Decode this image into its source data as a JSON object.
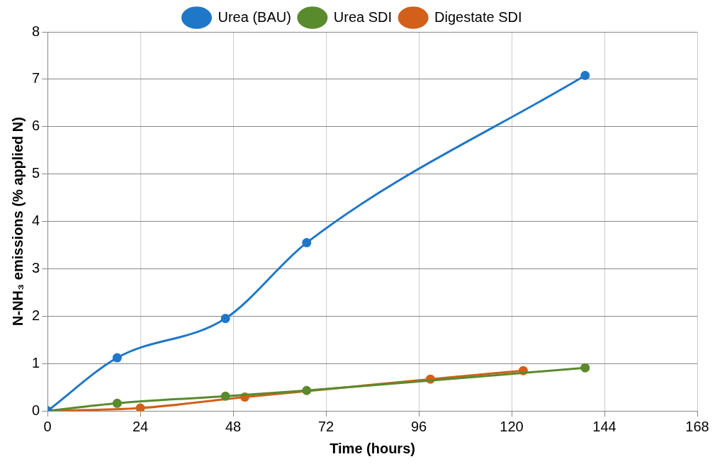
{
  "chart_data": {
    "type": "line",
    "xlabel": "Time (hours)",
    "ylabel": "N-NH₃ emissions (% applied N)",
    "xlim": [
      0,
      168
    ],
    "xticks": [
      0,
      24,
      48,
      72,
      96,
      120,
      144,
      168
    ],
    "ylim": [
      0,
      8
    ],
    "yticks": [
      0,
      1,
      2,
      3,
      4,
      5,
      6,
      7,
      8
    ],
    "grid": true,
    "legend": "top",
    "marker": "circle",
    "series": [
      {
        "name": "Urea (BAU)",
        "color": "#1f77c8",
        "x": [
          0,
          18,
          46,
          67,
          139
        ],
        "values": [
          0,
          1.12,
          1.95,
          3.55,
          7.08
        ]
      },
      {
        "name": "Urea SDI",
        "color": "#5a8a2e",
        "x": [
          0,
          18,
          46,
          67,
          139
        ],
        "values": [
          0,
          0.16,
          0.31,
          0.43,
          0.91
        ]
      },
      {
        "name": "Digestate SDI",
        "color": "#d2601a",
        "x": [
          0,
          24,
          51,
          99,
          123
        ],
        "values": [
          0,
          0.06,
          0.29,
          0.67,
          0.85
        ]
      }
    ]
  }
}
